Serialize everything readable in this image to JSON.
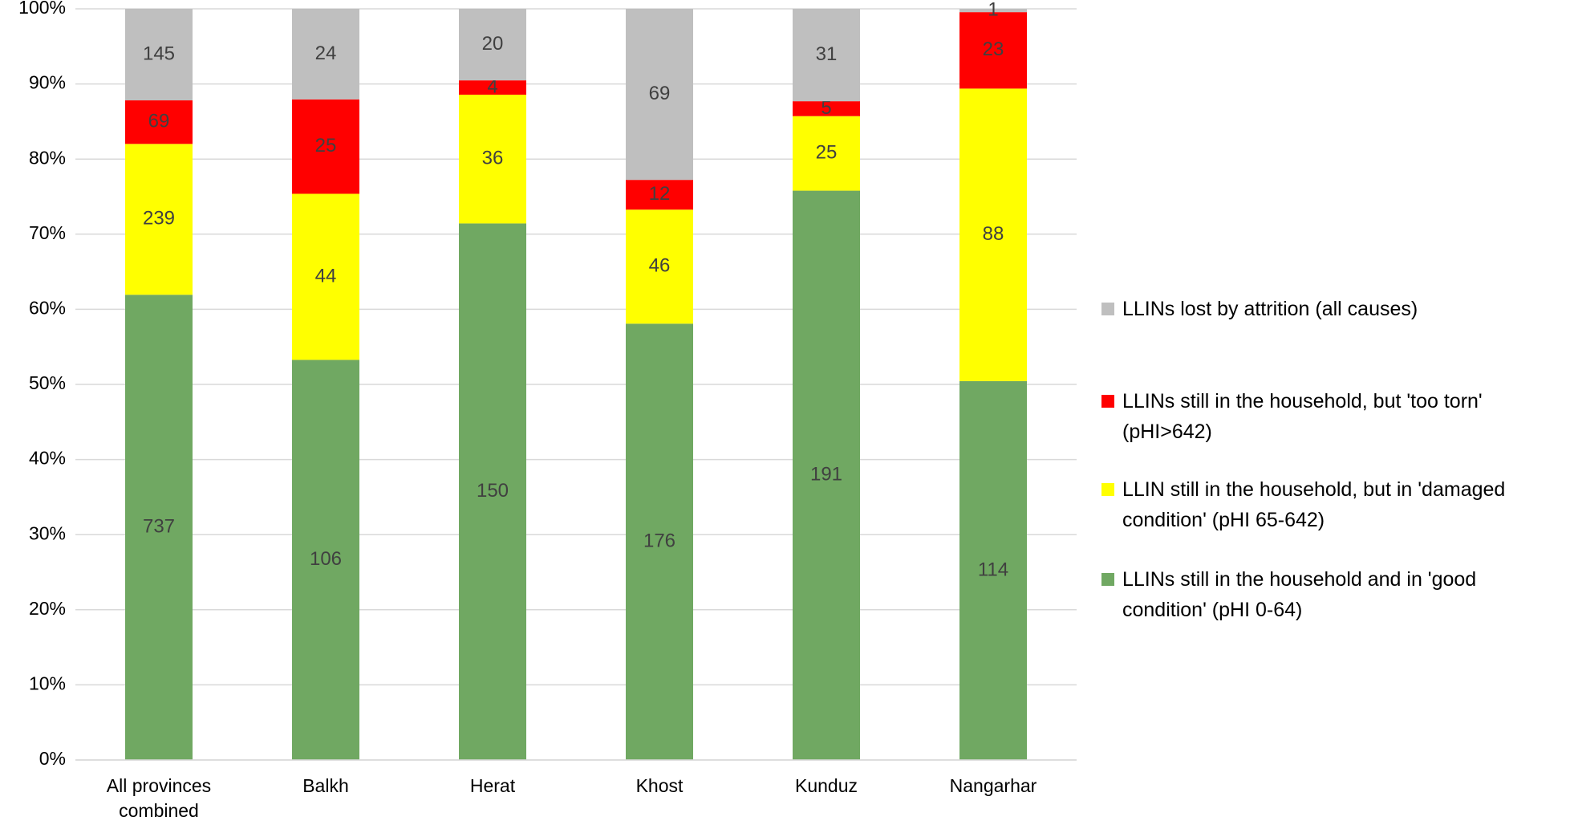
{
  "chart_data": {
    "type": "stacked_percent_bar",
    "categories": [
      "All provinces combined",
      "Balkh",
      "Herat",
      "Khost",
      "Kunduz",
      "Nangarhar"
    ],
    "series": [
      {
        "name": "LLINs still in the household and in 'good condition' (pHI 0-64)",
        "color": "#70a862",
        "values": [
          737,
          106,
          150,
          176,
          191,
          114
        ]
      },
      {
        "name": "LLIN still in the household, but in 'damaged condition' (pHI 65-642)",
        "color": "#ffff00",
        "values": [
          239,
          44,
          36,
          46,
          25,
          88
        ]
      },
      {
        "name": "LLINs still in the household, but 'too torn' (pHI>642)",
        "color": "#ff0000",
        "values": [
          69,
          25,
          4,
          12,
          5,
          23
        ]
      },
      {
        "name": "LLINs lost by attrition (all causes)",
        "color": "#bfbfbf",
        "values": [
          145,
          24,
          20,
          69,
          31,
          1
        ]
      }
    ],
    "ylim": [
      0,
      100
    ],
    "yticks": [
      {
        "value": 0,
        "label": "0%"
      },
      {
        "value": 10,
        "label": "10%"
      },
      {
        "value": 20,
        "label": "20%"
      },
      {
        "value": 30,
        "label": "30%"
      },
      {
        "value": 40,
        "label": "40%"
      },
      {
        "value": 50,
        "label": "50%"
      },
      {
        "value": 60,
        "label": "60%"
      },
      {
        "value": 70,
        "label": "70%"
      },
      {
        "value": 80,
        "label": "80%"
      },
      {
        "value": 90,
        "label": "90%"
      },
      {
        "value": 100,
        "label": "100%"
      }
    ],
    "grid": true,
    "legend": "right"
  }
}
